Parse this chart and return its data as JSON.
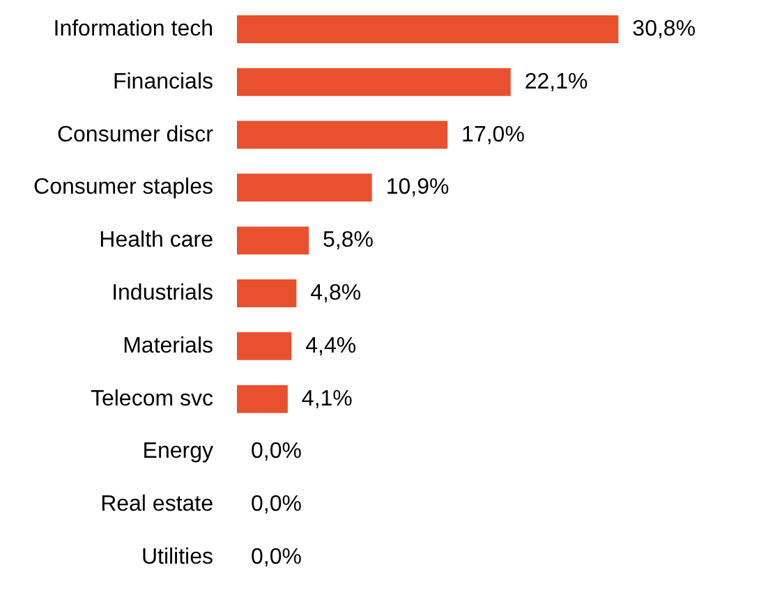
{
  "chart_data": {
    "type": "bar",
    "orientation": "horizontal",
    "categories": [
      "Information tech",
      "Financials",
      "Consumer discr",
      "Consumer staples",
      "Health care",
      "Industrials",
      "Materials",
      "Telecom svc",
      "Energy",
      "Real estate",
      "Utilities"
    ],
    "values": [
      30.8,
      22.1,
      17.0,
      10.9,
      5.8,
      4.8,
      4.4,
      4.1,
      0.0,
      0.0,
      0.0
    ],
    "value_labels": [
      "30,8%",
      "22,1%",
      "17,0%",
      "10,9%",
      "5,8%",
      "4,8%",
      "4,4%",
      "4,1%",
      "0,0%",
      "0,0%",
      "0,0%"
    ],
    "color": "#e8502e"
  }
}
